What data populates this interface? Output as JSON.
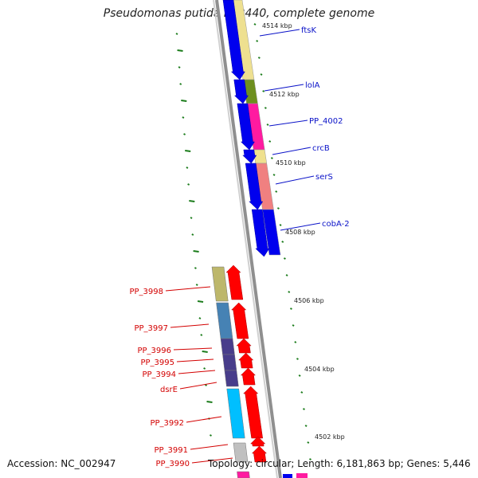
{
  "title": "Pseudomonas putida KT2440, complete genome",
  "accession": "Accession: NC_002947",
  "topology": "Topology: circular; Length: 6,181,863 bp; Genes: 5,446",
  "colors": {
    "backbone": "#8f8f8f",
    "forward_label": "#0a12c8",
    "reverse_label": "#d30000",
    "tick": "#1b7c1b",
    "cds_forward": "#0000ee",
    "cds_reverse": "#ff0000"
  },
  "scale_labels": [
    "4514 kbp",
    "4512 kbp",
    "4510 kbp",
    "4508 kbp",
    "4506 kbp",
    "4504 kbp",
    "4502 kbp"
  ],
  "forward_genes": [
    {
      "name": "ftsK",
      "color": "#eee090"
    },
    {
      "name": "lolA",
      "color": "#6e8f1e"
    },
    {
      "name": "PP_4002",
      "color": "#ff1aa0"
    },
    {
      "name": "crcB",
      "color": "#efe08e"
    },
    {
      "name": "serS",
      "color": "#f08080"
    },
    {
      "name": "cobA-2",
      "color": "#0000ee"
    }
  ],
  "reverse_genes": [
    {
      "name": "PP_3998",
      "color": "#bdb76b"
    },
    {
      "name": "PP_3997",
      "color": "#4682b4"
    },
    {
      "name": "PP_3996",
      "color": "#483d8b"
    },
    {
      "name": "PP_3995",
      "color": "#483d8b"
    },
    {
      "name": "PP_3994",
      "color": "#483d8b"
    },
    {
      "name": "dsrE",
      "color": "#483d8b"
    },
    {
      "name": "PP_3992",
      "color": "#00bfff"
    },
    {
      "name": "PP_3991",
      "color": "#c0c0c0"
    },
    {
      "name": "PP_3990",
      "color": "#ff1aa0"
    }
  ]
}
